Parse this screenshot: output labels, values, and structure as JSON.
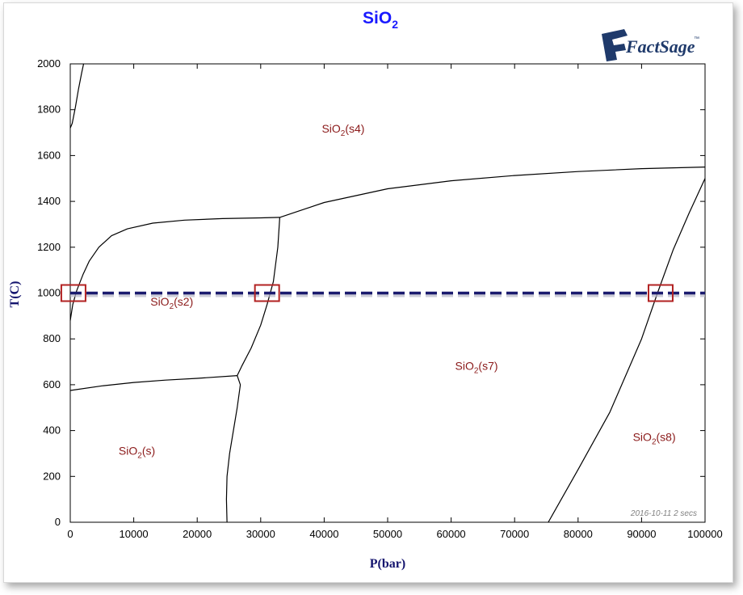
{
  "chart_data": {
    "type": "line",
    "title": "SiO2",
    "title_main": "SiO",
    "title_sub": "2",
    "xlabel": "P(bar)",
    "ylabel": "T(C)",
    "xlim": [
      0,
      100000
    ],
    "ylim": [
      0,
      2000
    ],
    "x_ticks": [
      "0",
      "10000",
      "20000",
      "30000",
      "40000",
      "50000",
      "60000",
      "70000",
      "80000",
      "90000",
      "100000"
    ],
    "y_ticks": [
      "0",
      "200",
      "400",
      "600",
      "800",
      "1000",
      "1200",
      "1400",
      "1600",
      "1800",
      "2000"
    ],
    "x_tick_values": [
      0,
      10000,
      20000,
      30000,
      40000,
      50000,
      60000,
      70000,
      80000,
      90000,
      100000
    ],
    "y_tick_values": [
      0,
      200,
      400,
      600,
      800,
      1000,
      1200,
      1400,
      1600,
      1800,
      2000
    ],
    "grid": false,
    "series": [
      {
        "points": [
          [
            0,
            1720
          ],
          [
            300,
            1740
          ],
          [
            800,
            1810
          ],
          [
            1300,
            1890
          ],
          [
            1800,
            1960
          ],
          [
            2100,
            2000
          ]
        ]
      },
      {
        "points": [
          [
            0,
            880
          ],
          [
            400,
            950
          ],
          [
            1000,
            1010
          ],
          [
            2000,
            1080
          ],
          [
            3000,
            1140
          ],
          [
            4500,
            1200
          ],
          [
            6500,
            1250
          ],
          [
            9000,
            1280
          ],
          [
            13000,
            1305
          ],
          [
            18000,
            1318
          ],
          [
            24000,
            1325
          ],
          [
            30000,
            1328
          ],
          [
            33000,
            1330
          ]
        ]
      },
      {
        "points": [
          [
            33000,
            1330
          ],
          [
            40000,
            1395
          ],
          [
            50000,
            1455
          ],
          [
            60000,
            1490
          ],
          [
            70000,
            1513
          ],
          [
            80000,
            1530
          ],
          [
            90000,
            1543
          ],
          [
            100000,
            1550
          ]
        ]
      },
      {
        "points": [
          [
            33000,
            1330
          ],
          [
            32700,
            1200
          ],
          [
            32000,
            1050
          ],
          [
            31000,
            950
          ],
          [
            30000,
            860
          ],
          [
            28500,
            760
          ],
          [
            27000,
            680
          ],
          [
            26300,
            640
          ]
        ]
      },
      {
        "points": [
          [
            0,
            575
          ],
          [
            5000,
            595
          ],
          [
            10000,
            610
          ],
          [
            15000,
            620
          ],
          [
            20000,
            628
          ],
          [
            26300,
            640
          ]
        ]
      },
      {
        "points": [
          [
            26300,
            640
          ],
          [
            26800,
            600
          ],
          [
            26300,
            500
          ],
          [
            25700,
            400
          ],
          [
            25100,
            300
          ],
          [
            24700,
            200
          ],
          [
            24600,
            100
          ],
          [
            24700,
            0
          ]
        ]
      },
      {
        "points": [
          [
            75300,
            0
          ],
          [
            80000,
            230
          ],
          [
            85000,
            480
          ],
          [
            90000,
            800
          ],
          [
            92500,
            1000
          ],
          [
            95000,
            1190
          ],
          [
            97500,
            1350
          ],
          [
            100000,
            1500
          ]
        ]
      }
    ],
    "reference_line": {
      "y": 1000,
      "color": "#1a1a6e",
      "style": "dashed"
    },
    "highlight_boxes": [
      {
        "x": 500,
        "y": 1000
      },
      {
        "x": 31000,
        "y": 1000
      },
      {
        "x": 93000,
        "y": 1000
      }
    ],
    "regions": [
      {
        "base": "SiO",
        "sub": "2",
        "suffix": "(s4)",
        "x": 43000,
        "y": 1700
      },
      {
        "base": "SiO",
        "sub": "2",
        "suffix": "(s2)",
        "x": 16000,
        "y": 945
      },
      {
        "base": "SiO",
        "sub": "2",
        "suffix": "(s7)",
        "x": 64000,
        "y": 665
      },
      {
        "base": "SiO",
        "sub": "2",
        "suffix": "(s)",
        "x": 10500,
        "y": 295
      },
      {
        "base": "SiO",
        "sub": "2",
        "suffix": "(s8)",
        "x": 92000,
        "y": 355
      }
    ],
    "annotation": "2016-10-11  2 secs"
  },
  "logo": {
    "text": "FactSage",
    "tm": "™"
  },
  "colors": {
    "title": "#1a1aff",
    "axis_label": "#14146e",
    "region_label": "#8b1a1a",
    "curve": "#000000",
    "reference_line": "#1a1a6e",
    "highlight_box": "#b22222",
    "logo": "#1f3a6b"
  }
}
